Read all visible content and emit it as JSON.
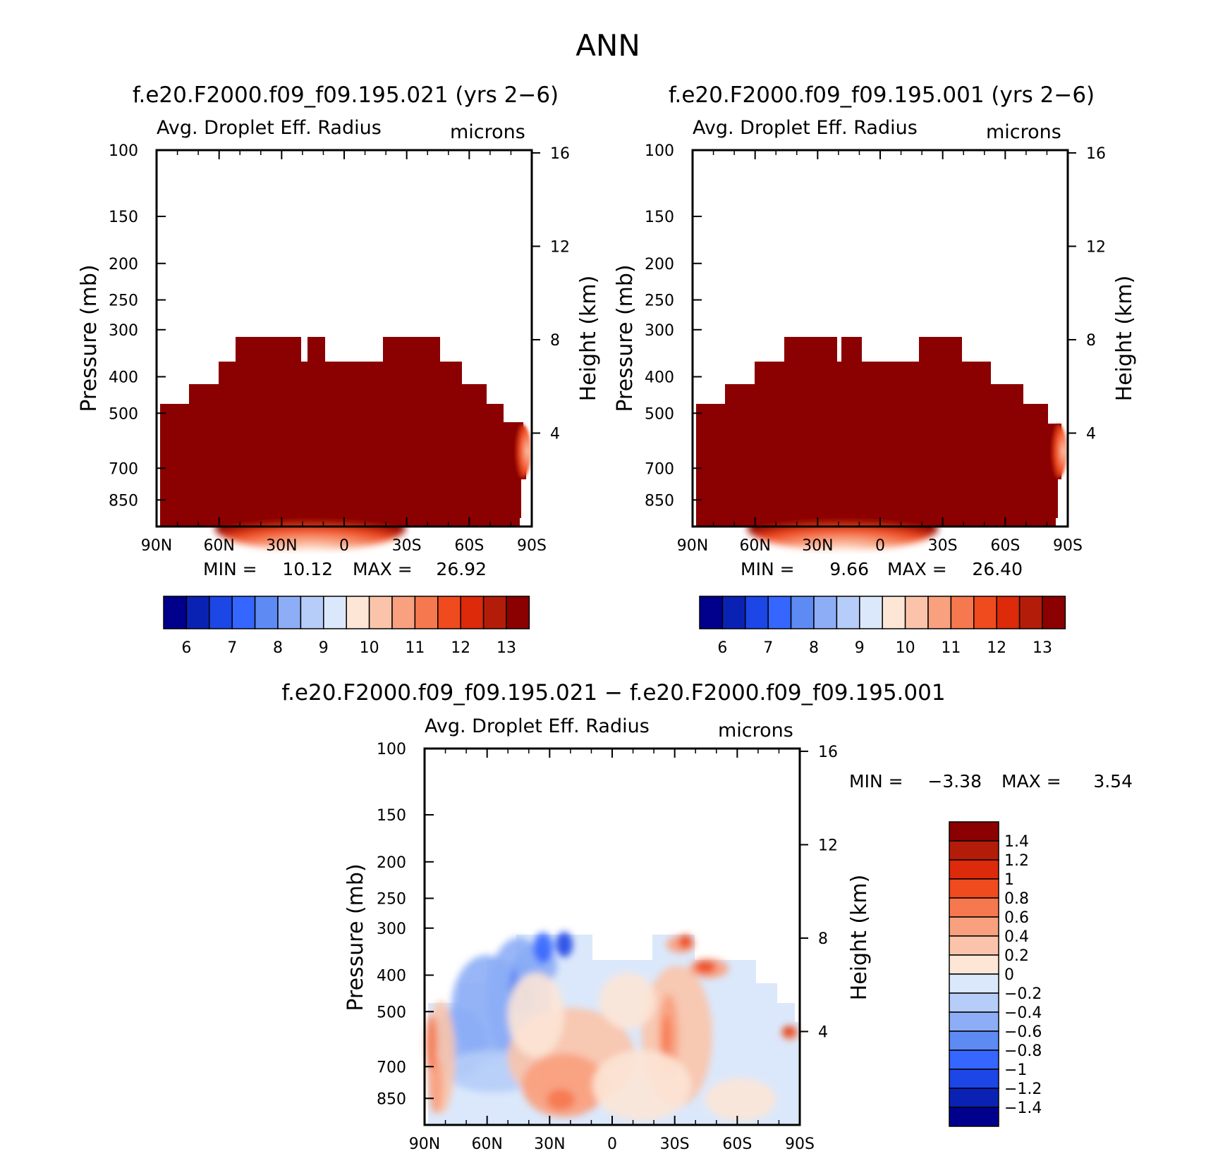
{
  "page_title": "ANN",
  "chart_data": [
    {
      "type": "contour",
      "title": "f.e20.F2000.f09_f09.195.021 (yrs 2−6)",
      "variable": "Avg. Droplet Eff. Radius",
      "units": "microns",
      "ylabel": "Pressure (mb)",
      "ylabel_right": "Height (km)",
      "x_ticks": [
        "90N",
        "60N",
        "30N",
        "0",
        "30S",
        "60S",
        "90S"
      ],
      "y_ticks": [
        100,
        150,
        200,
        250,
        300,
        400,
        500,
        700,
        850
      ],
      "height_ticks": [
        16,
        12,
        8,
        4
      ],
      "min_label": "MIN =",
      "min_value": "10.12",
      "max_label": "MAX =",
      "max_value": "26.92",
      "colorbar": {
        "orientation": "horizontal",
        "tick_labels": [
          "6",
          "7",
          "8",
          "9",
          "10",
          "11",
          "12",
          "13"
        ],
        "colors": [
          "#00008c",
          "#0a22b4",
          "#1c46e6",
          "#3566ff",
          "#5e8af4",
          "#8daef6",
          "#b5cdf8",
          "#dbe8fb",
          "#fde6d6",
          "#fbc4aa",
          "#f9a07e",
          "#f6784e",
          "#f04a1f",
          "#dc2a0a",
          "#b41c0a",
          "#8b0000"
        ]
      },
      "field": {
        "dominant_value_range": "> 13 microns",
        "cloud_top_pressure_mb": 300,
        "notes": "field fills troposphere below ~300 mb (tropics) to ~450 mb (poles); weaker values near surface 30N–10S"
      }
    },
    {
      "type": "contour",
      "title": "f.e20.F2000.f09_f09.195.001 (yrs 2−6)",
      "variable": "Avg. Droplet Eff. Radius",
      "units": "microns",
      "ylabel": "Pressure (mb)",
      "ylabel_right": "Height (km)",
      "x_ticks": [
        "90N",
        "60N",
        "30N",
        "0",
        "30S",
        "60S",
        "90S"
      ],
      "y_ticks": [
        100,
        150,
        200,
        250,
        300,
        400,
        500,
        700,
        850
      ],
      "height_ticks": [
        16,
        12,
        8,
        4
      ],
      "min_label": "MIN =",
      "min_value": "9.66",
      "max_label": "MAX =",
      "max_value": "26.40",
      "colorbar": {
        "orientation": "horizontal",
        "tick_labels": [
          "6",
          "7",
          "8",
          "9",
          "10",
          "11",
          "12",
          "13"
        ],
        "colors": [
          "#00008c",
          "#0a22b4",
          "#1c46e6",
          "#3566ff",
          "#5e8af4",
          "#8daef6",
          "#b5cdf8",
          "#dbe8fb",
          "#fde6d6",
          "#fbc4aa",
          "#f9a07e",
          "#f6784e",
          "#f04a1f",
          "#dc2a0a",
          "#b41c0a",
          "#8b0000"
        ]
      },
      "field": {
        "dominant_value_range": "> 13 microns",
        "cloud_top_pressure_mb": 300,
        "notes": "same pattern as the 195.021 case"
      }
    },
    {
      "type": "contour",
      "title": "f.e20.F2000.f09_f09.195.021 − f.e20.F2000.f09_f09.195.001",
      "variable": "Avg. Droplet Eff. Radius",
      "units": "microns",
      "ylabel": "Pressure (mb)",
      "ylabel_right": "Height (km)",
      "x_ticks": [
        "90N",
        "60N",
        "30N",
        "0",
        "30S",
        "60S",
        "90S"
      ],
      "y_ticks": [
        100,
        150,
        200,
        250,
        300,
        400,
        500,
        700,
        850
      ],
      "height_ticks": [
        16,
        12,
        8,
        4
      ],
      "min_label": "MIN =",
      "min_value": "−3.38",
      "max_label": "MAX =",
      "max_value": "3.54",
      "colorbar": {
        "orientation": "vertical",
        "tick_labels": [
          "1.4",
          "1.2",
          "1",
          "0.8",
          "0.6",
          "0.4",
          "0.2",
          "0",
          "−0.2",
          "−0.4",
          "−0.6",
          "−0.8",
          "−1",
          "−1.2",
          "−1.4"
        ],
        "colors": [
          "#8b0000",
          "#b41c0a",
          "#dc2a0a",
          "#f04a1f",
          "#f6784e",
          "#f9a07e",
          "#fbc4aa",
          "#fde6d6",
          "#dbe8fb",
          "#b5cdf8",
          "#8daef6",
          "#5e8af4",
          "#3566ff",
          "#1c46e6",
          "#0a22b4",
          "#00008c"
        ]
      },
      "field": {
        "notes": "mostly between −0.6 and +0.6; negative (blue) in 90N–20N mid-troposphere, positive (red) near 30N surface and 20S–40S"
      }
    }
  ]
}
